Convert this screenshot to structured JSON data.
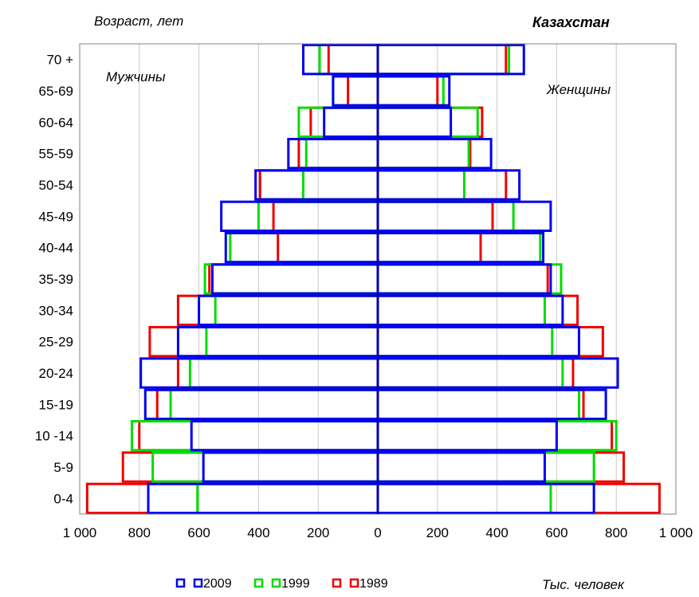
{
  "chart_data": {
    "type": "bar",
    "subtype": "population-pyramid",
    "title": "Казахстан",
    "ylabel": "Возраст, лет",
    "xlabel": "Тыс. человек",
    "left_label": "Мужчины",
    "right_label": "Женщины",
    "xlim": [
      -1000,
      1000
    ],
    "x_ticks": [
      -1000,
      -800,
      -600,
      -400,
      -200,
      0,
      200,
      400,
      600,
      800,
      1000
    ],
    "x_tick_labels": [
      "1 000",
      "800",
      "600",
      "400",
      "200",
      "0",
      "200",
      "400",
      "600",
      "800",
      "1 000"
    ],
    "grid": "vertical",
    "legend_position": "bottom",
    "categories": [
      "0-4",
      "5-9",
      "10 -14",
      "15-19",
      "20-24",
      "25-29",
      "30-34",
      "35-39",
      "40-44",
      "45-49",
      "50-54",
      "55-59",
      "60-64",
      "65-69",
      "70 +"
    ],
    "series": [
      {
        "name": "2009",
        "color": "#0000ee",
        "men": [
          770,
          585,
          625,
          780,
          795,
          670,
          600,
          555,
          510,
          525,
          410,
          300,
          180,
          150,
          250
        ],
        "women": [
          725,
          560,
          600,
          765,
          805,
          675,
          620,
          580,
          555,
          580,
          475,
          380,
          245,
          240,
          490
        ]
      },
      {
        "name": "1999",
        "color": "#00dd00",
        "men": [
          605,
          755,
          825,
          695,
          630,
          575,
          545,
          580,
          495,
          400,
          250,
          240,
          265,
          150,
          195
        ],
        "women": [
          580,
          725,
          800,
          675,
          620,
          585,
          560,
          615,
          545,
          455,
          290,
          305,
          335,
          220,
          440
        ]
      },
      {
        "name": "1989",
        "color": "#ee0000",
        "men": [
          975,
          855,
          800,
          740,
          670,
          765,
          670,
          565,
          335,
          350,
          395,
          265,
          225,
          100,
          165
        ],
        "women": [
          945,
          825,
          785,
          690,
          655,
          755,
          670,
          570,
          345,
          385,
          430,
          310,
          350,
          200,
          430
        ]
      }
    ]
  }
}
